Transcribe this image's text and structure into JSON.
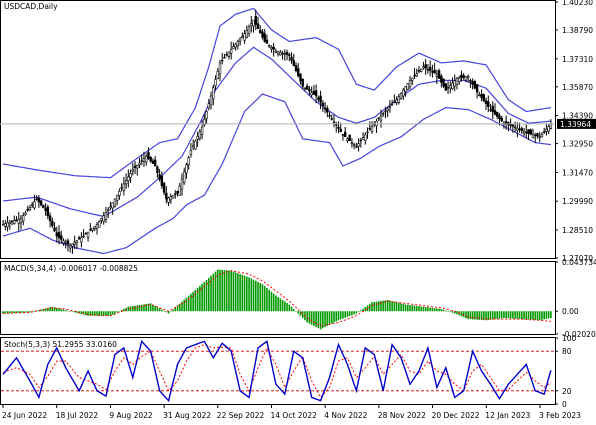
{
  "chart_data": [
    {
      "type": "candlestick",
      "title": "USDCAD,Daily",
      "instrument": "USDCAD",
      "timeframe": "Daily",
      "x_ticks": [
        "24 Jun 2022",
        "18 Jul 2022",
        "9 Aug 2022",
        "31 Aug 2022",
        "22 Sep 2022",
        "14 Oct 2022",
        "4 Nov 2022",
        "28 Nov 2022",
        "20 Dec 2022",
        "12 Jan 2023",
        "3 Feb 2023"
      ],
      "y_ticks": [
        "1.40230",
        "1.38790",
        "1.37310",
        "1.35870",
        "1.34390",
        "1.32950",
        "1.31470",
        "1.29990",
        "1.28510",
        "1.27070"
      ],
      "ylim": [
        1.2707,
        1.4023
      ],
      "current_price": "1.33964",
      "grid": false,
      "bollinger_bands": true,
      "close_path": [
        [
          0,
          1.288
        ],
        [
          8,
          1.291
        ],
        [
          15,
          1.301
        ],
        [
          19,
          1.295
        ],
        [
          24,
          1.282
        ],
        [
          30,
          1.277
        ],
        [
          36,
          1.282
        ],
        [
          42,
          1.288
        ],
        [
          48,
          1.297
        ],
        [
          53,
          1.307
        ],
        [
          58,
          1.316
        ],
        [
          64,
          1.323
        ],
        [
          68,
          1.318
        ],
        [
          73,
          1.301
        ],
        [
          78,
          1.304
        ],
        [
          84,
          1.326
        ],
        [
          89,
          1.338
        ],
        [
          93,
          1.354
        ],
        [
          97,
          1.371
        ],
        [
          102,
          1.378
        ],
        [
          108,
          1.386
        ],
        [
          112,
          1.393
        ],
        [
          117,
          1.382
        ],
        [
          122,
          1.377
        ],
        [
          128,
          1.375
        ],
        [
          134,
          1.359
        ],
        [
          140,
          1.354
        ],
        [
          146,
          1.344
        ],
        [
          152,
          1.334
        ],
        [
          158,
          1.328
        ],
        [
          164,
          1.337
        ],
        [
          170,
          1.345
        ],
        [
          176,
          1.352
        ],
        [
          182,
          1.362
        ],
        [
          188,
          1.369
        ],
        [
          194,
          1.365
        ],
        [
          198,
          1.357
        ],
        [
          203,
          1.363
        ],
        [
          208,
          1.364
        ],
        [
          212,
          1.356
        ],
        [
          218,
          1.347
        ],
        [
          224,
          1.34
        ],
        [
          229,
          1.338
        ],
        [
          234,
          1.335
        ],
        [
          240,
          1.333
        ],
        [
          245,
          1.3396
        ]
      ],
      "bands_upper": [
        [
          0,
          1.319
        ],
        [
          15,
          1.316
        ],
        [
          32,
          1.313
        ],
        [
          48,
          1.312
        ],
        [
          60,
          1.322
        ],
        [
          70,
          1.33
        ],
        [
          78,
          1.332
        ],
        [
          86,
          1.348
        ],
        [
          92,
          1.369
        ],
        [
          97,
          1.39
        ],
        [
          104,
          1.396
        ],
        [
          112,
          1.399
        ],
        [
          120,
          1.388
        ],
        [
          128,
          1.382
        ],
        [
          140,
          1.384
        ],
        [
          150,
          1.378
        ],
        [
          158,
          1.36
        ],
        [
          166,
          1.357
        ],
        [
          176,
          1.369
        ],
        [
          186,
          1.376
        ],
        [
          196,
          1.371
        ],
        [
          206,
          1.372
        ],
        [
          216,
          1.37
        ],
        [
          226,
          1.352
        ],
        [
          234,
          1.346
        ],
        [
          245,
          1.348
        ]
      ],
      "bands_middle": [
        [
          0,
          1.3
        ],
        [
          15,
          1.302
        ],
        [
          30,
          1.296
        ],
        [
          45,
          1.292
        ],
        [
          60,
          1.302
        ],
        [
          70,
          1.312
        ],
        [
          80,
          1.323
        ],
        [
          88,
          1.34
        ],
        [
          95,
          1.357
        ],
        [
          104,
          1.371
        ],
        [
          112,
          1.379
        ],
        [
          120,
          1.373
        ],
        [
          130,
          1.362
        ],
        [
          140,
          1.351
        ],
        [
          150,
          1.343
        ],
        [
          158,
          1.34
        ],
        [
          166,
          1.343
        ],
        [
          176,
          1.352
        ],
        [
          186,
          1.36
        ],
        [
          196,
          1.362
        ],
        [
          206,
          1.362
        ],
        [
          216,
          1.358
        ],
        [
          226,
          1.345
        ],
        [
          235,
          1.34
        ],
        [
          245,
          1.341
        ]
      ],
      "bands_lower": [
        [
          0,
          1.282
        ],
        [
          12,
          1.286
        ],
        [
          22,
          1.28
        ],
        [
          32,
          1.276
        ],
        [
          45,
          1.273
        ],
        [
          55,
          1.276
        ],
        [
          68,
          1.286
        ],
        [
          76,
          1.291
        ],
        [
          82,
          1.298
        ],
        [
          90,
          1.303
        ],
        [
          98,
          1.319
        ],
        [
          108,
          1.346
        ],
        [
          116,
          1.355
        ],
        [
          126,
          1.351
        ],
        [
          134,
          1.332
        ],
        [
          146,
          1.33
        ],
        [
          152,
          1.318
        ],
        [
          160,
          1.322
        ],
        [
          168,
          1.328
        ],
        [
          178,
          1.333
        ],
        [
          188,
          1.342
        ],
        [
          198,
          1.348
        ],
        [
          208,
          1.347
        ],
        [
          218,
          1.342
        ],
        [
          228,
          1.336
        ],
        [
          238,
          1.33
        ],
        [
          245,
          1.329
        ]
      ]
    },
    {
      "type": "bar",
      "name": "MACD(5,34,4)",
      "title": "MACD(5,34,4) -0.006017 -0.008825",
      "macd_value": "-0.006017",
      "signal_value": "-0.008825",
      "y_ticks": [
        "0.043734",
        "0.00",
        "-0.020207"
      ],
      "ylim": [
        -0.0202,
        0.0437
      ],
      "bar_color": "#009900",
      "signal_color": "#ff0000",
      "hist_path": [
        [
          0,
          -0.002
        ],
        [
          12,
          -0.001
        ],
        [
          22,
          0.004
        ],
        [
          28,
          0.001
        ],
        [
          38,
          -0.004
        ],
        [
          48,
          -0.004
        ],
        [
          56,
          0.004
        ],
        [
          66,
          0.007
        ],
        [
          74,
          -0.002
        ],
        [
          82,
          0.012
        ],
        [
          90,
          0.026
        ],
        [
          96,
          0.037
        ],
        [
          102,
          0.036
        ],
        [
          110,
          0.03
        ],
        [
          116,
          0.024
        ],
        [
          122,
          0.014
        ],
        [
          128,
          0.006
        ],
        [
          136,
          -0.01
        ],
        [
          142,
          -0.016
        ],
        [
          150,
          -0.008
        ],
        [
          158,
          -0.002
        ],
        [
          165,
          0.008
        ],
        [
          172,
          0.01
        ],
        [
          180,
          0.006
        ],
        [
          188,
          0.004
        ],
        [
          196,
          0.002
        ],
        [
          202,
          -0.002
        ],
        [
          208,
          -0.007
        ],
        [
          216,
          -0.008
        ],
        [
          224,
          -0.006
        ],
        [
          232,
          -0.007
        ],
        [
          240,
          -0.008
        ],
        [
          245,
          -0.006
        ]
      ],
      "signal_path": [
        [
          0,
          -0.002
        ],
        [
          12,
          -0.001
        ],
        [
          22,
          0.003
        ],
        [
          28,
          0.002
        ],
        [
          38,
          -0.003
        ],
        [
          48,
          -0.004
        ],
        [
          56,
          0.002
        ],
        [
          66,
          0.006
        ],
        [
          74,
          0.0
        ],
        [
          82,
          0.009
        ],
        [
          90,
          0.022
        ],
        [
          96,
          0.032
        ],
        [
          102,
          0.036
        ],
        [
          110,
          0.033
        ],
        [
          116,
          0.027
        ],
        [
          122,
          0.018
        ],
        [
          128,
          0.009
        ],
        [
          136,
          -0.006
        ],
        [
          142,
          -0.013
        ],
        [
          150,
          -0.01
        ],
        [
          158,
          -0.004
        ],
        [
          165,
          0.005
        ],
        [
          172,
          0.009
        ],
        [
          180,
          0.007
        ],
        [
          188,
          0.005
        ],
        [
          196,
          0.003
        ],
        [
          202,
          0.0
        ],
        [
          208,
          -0.005
        ],
        [
          216,
          -0.007
        ],
        [
          224,
          -0.007
        ],
        [
          232,
          -0.007
        ],
        [
          240,
          -0.008
        ],
        [
          245,
          -0.009
        ]
      ]
    },
    {
      "type": "line",
      "name": "Stoch(5,3,3)",
      "title": "Stoch(5,3,3) 51.2955 33.0160",
      "main_value": "51.2955",
      "signal_value": "33.0160",
      "y_ticks": [
        "100",
        "80",
        "20",
        "0"
      ],
      "levels": [
        80,
        20
      ],
      "ylim": [
        0,
        100
      ],
      "main_color": "#0000cc",
      "signal_color": "#ff0000",
      "main_path": [
        [
          0,
          45
        ],
        [
          6,
          70
        ],
        [
          12,
          35
        ],
        [
          16,
          10
        ],
        [
          20,
          60
        ],
        [
          24,
          85
        ],
        [
          28,
          55
        ],
        [
          34,
          20
        ],
        [
          38,
          50
        ],
        [
          42,
          20
        ],
        [
          46,
          12
        ],
        [
          50,
          75
        ],
        [
          54,
          85
        ],
        [
          58,
          40
        ],
        [
          62,
          95
        ],
        [
          66,
          80
        ],
        [
          70,
          20
        ],
        [
          74,
          5
        ],
        [
          78,
          60
        ],
        [
          82,
          85
        ],
        [
          86,
          90
        ],
        [
          90,
          95
        ],
        [
          94,
          70
        ],
        [
          98,
          92
        ],
        [
          102,
          80
        ],
        [
          106,
          20
        ],
        [
          110,
          10
        ],
        [
          114,
          85
        ],
        [
          118,
          95
        ],
        [
          122,
          30
        ],
        [
          126,
          15
        ],
        [
          130,
          80
        ],
        [
          134,
          70
        ],
        [
          138,
          10
        ],
        [
          142,
          5
        ],
        [
          146,
          40
        ],
        [
          150,
          90
        ],
        [
          154,
          60
        ],
        [
          158,
          20
        ],
        [
          162,
          85
        ],
        [
          166,
          75
        ],
        [
          170,
          20
        ],
        [
          174,
          90
        ],
        [
          178,
          70
        ],
        [
          182,
          30
        ],
        [
          186,
          50
        ],
        [
          190,
          85
        ],
        [
          194,
          25
        ],
        [
          198,
          55
        ],
        [
          202,
          10
        ],
        [
          206,
          20
        ],
        [
          210,
          80
        ],
        [
          214,
          50
        ],
        [
          218,
          30
        ],
        [
          222,
          8
        ],
        [
          226,
          30
        ],
        [
          230,
          45
        ],
        [
          234,
          60
        ],
        [
          238,
          20
        ],
        [
          242,
          15
        ],
        [
          245,
          51
        ]
      ],
      "signal_path": [
        [
          0,
          48
        ],
        [
          6,
          55
        ],
        [
          12,
          45
        ],
        [
          16,
          25
        ],
        [
          20,
          42
        ],
        [
          24,
          65
        ],
        [
          28,
          65
        ],
        [
          34,
          40
        ],
        [
          38,
          35
        ],
        [
          42,
          30
        ],
        [
          46,
          22
        ],
        [
          50,
          50
        ],
        [
          54,
          70
        ],
        [
          58,
          60
        ],
        [
          62,
          72
        ],
        [
          66,
          80
        ],
        [
          70,
          50
        ],
        [
          74,
          20
        ],
        [
          78,
          35
        ],
        [
          82,
          65
        ],
        [
          86,
          85
        ],
        [
          90,
          90
        ],
        [
          94,
          85
        ],
        [
          98,
          86
        ],
        [
          102,
          85
        ],
        [
          106,
          45
        ],
        [
          110,
          20
        ],
        [
          114,
          55
        ],
        [
          118,
          85
        ],
        [
          122,
          60
        ],
        [
          126,
          25
        ],
        [
          130,
          50
        ],
        [
          134,
          72
        ],
        [
          138,
          35
        ],
        [
          142,
          10
        ],
        [
          146,
          25
        ],
        [
          150,
          65
        ],
        [
          154,
          70
        ],
        [
          158,
          40
        ],
        [
          162,
          55
        ],
        [
          166,
          72
        ],
        [
          170,
          45
        ],
        [
          174,
          60
        ],
        [
          178,
          75
        ],
        [
          182,
          50
        ],
        [
          186,
          45
        ],
        [
          190,
          65
        ],
        [
          194,
          50
        ],
        [
          198,
          45
        ],
        [
          202,
          30
        ],
        [
          206,
          20
        ],
        [
          210,
          50
        ],
        [
          214,
          60
        ],
        [
          218,
          40
        ],
        [
          222,
          20
        ],
        [
          226,
          22
        ],
        [
          230,
          35
        ],
        [
          234,
          48
        ],
        [
          238,
          35
        ],
        [
          242,
          25
        ],
        [
          245,
          33
        ]
      ]
    }
  ]
}
